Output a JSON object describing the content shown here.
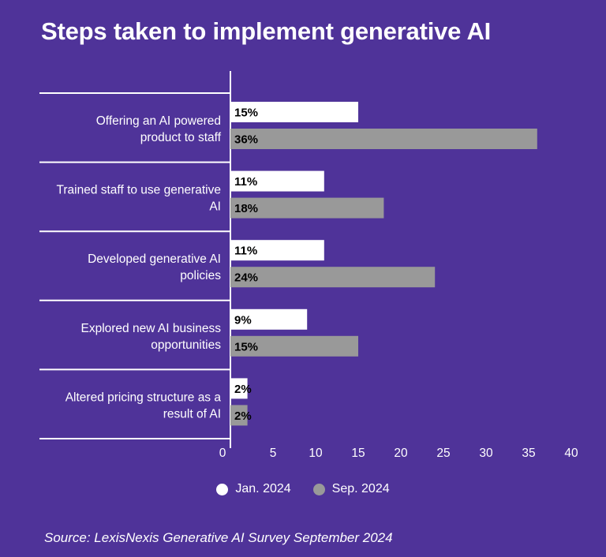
{
  "colors": {
    "background": "#4F3399",
    "jan": "#FFFFFF",
    "sep": "#999999",
    "axis": "#FFFFFF"
  },
  "chart_data": {
    "type": "bar",
    "orientation": "horizontal",
    "title": "Steps taken to implement generative AI",
    "categories": [
      [
        "Offering an AI powered",
        "product to staff"
      ],
      [
        "Trained staff to use generative",
        "AI"
      ],
      [
        "Developed generative AI",
        "policies"
      ],
      [
        "Explored new AI business",
        "opportunities"
      ],
      [
        "Altered pricing structure as a",
        "result of AI"
      ]
    ],
    "series": [
      {
        "name": "Jan. 2024",
        "values": [
          15,
          11,
          11,
          9,
          2
        ],
        "labels": [
          "15%",
          "11%",
          "11%",
          "9%",
          "2%"
        ]
      },
      {
        "name": "Sep. 2024",
        "values": [
          36,
          18,
          24,
          15,
          2
        ],
        "labels": [
          "36%",
          "18%",
          "24%",
          "15%",
          "2%"
        ]
      }
    ],
    "xlim": [
      0,
      40
    ],
    "xticks": [
      0,
      5,
      10,
      15,
      20,
      25,
      30,
      35,
      40
    ],
    "legend_position": "bottom-center",
    "grid": false
  },
  "source": "Source: LexisNexis Generative AI Survey September 2024"
}
